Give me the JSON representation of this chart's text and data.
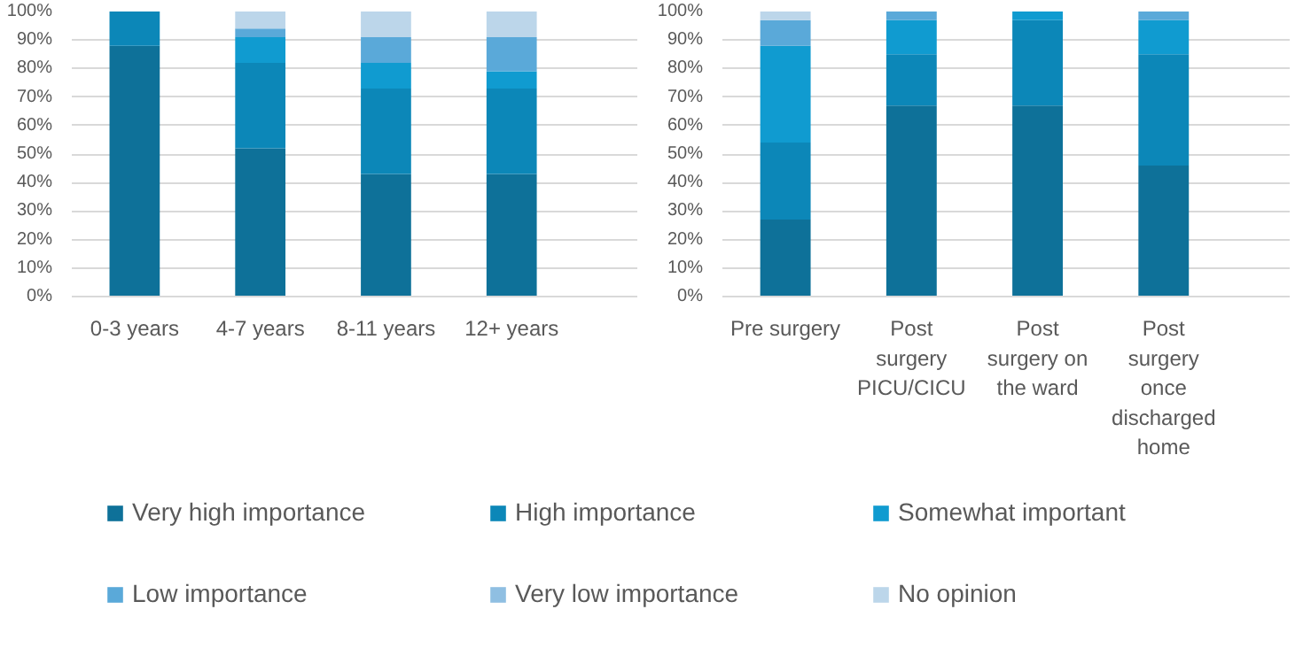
{
  "chart_data": [
    {
      "type": "bar",
      "stacked": true,
      "categories": [
        "0-3 years",
        "4-7 years",
        "8-11 years",
        "12+ years"
      ],
      "ylim": [
        0,
        100
      ],
      "yticks": [
        {
          "value": 0,
          "label": "0%"
        },
        {
          "value": 10,
          "label": "10%"
        },
        {
          "value": 20,
          "label": "20%"
        },
        {
          "value": 30,
          "label": "30%"
        },
        {
          "value": 40,
          "label": "40%"
        },
        {
          "value": 50,
          "label": "50%"
        },
        {
          "value": 60,
          "label": "60%"
        },
        {
          "value": 70,
          "label": "70%"
        },
        {
          "value": 80,
          "label": "80%"
        },
        {
          "value": 90,
          "label": "90%"
        },
        {
          "value": 100,
          "label": "100%"
        }
      ],
      "grid": "y",
      "legend": "bottom",
      "series": [
        {
          "name": "Very high importance",
          "color": "#0e7199",
          "values": [
            88,
            52,
            43,
            43
          ]
        },
        {
          "name": "High importance",
          "color": "#0c87b8",
          "values": [
            12,
            30,
            30,
            30
          ]
        },
        {
          "name": "Somewhat important",
          "color": "#109bd0",
          "values": [
            0,
            9,
            9,
            6
          ]
        },
        {
          "name": "Low importance",
          "color": "#5aa9d9",
          "values": [
            0,
            3,
            9,
            12
          ]
        },
        {
          "name": "Very low importance",
          "color": "#8fbfe2",
          "values": [
            0,
            0,
            0,
            0
          ]
        },
        {
          "name": "No opinion",
          "color": "#bcd6ea",
          "values": [
            0,
            6,
            9,
            9
          ]
        }
      ]
    },
    {
      "type": "bar",
      "stacked": true,
      "categories": [
        "Pre surgery",
        "Post surgery PICU/CICU",
        "Post surgery on the ward",
        "Post surgery once discharged home"
      ],
      "ylim": [
        0,
        100
      ],
      "yticks": [
        {
          "value": 0,
          "label": "0%"
        },
        {
          "value": 10,
          "label": "10%"
        },
        {
          "value": 20,
          "label": "20%"
        },
        {
          "value": 30,
          "label": "30%"
        },
        {
          "value": 40,
          "label": "40%"
        },
        {
          "value": 50,
          "label": "50%"
        },
        {
          "value": 60,
          "label": "60%"
        },
        {
          "value": 70,
          "label": "70%"
        },
        {
          "value": 80,
          "label": "80%"
        },
        {
          "value": 90,
          "label": "90%"
        },
        {
          "value": 100,
          "label": "100%"
        }
      ],
      "grid": "y",
      "series": [
        {
          "color": "#0e7199",
          "values": [
            27,
            67,
            67,
            46
          ]
        },
        {
          "color": "#0c87b8",
          "values": [
            27,
            18,
            30,
            39
          ]
        },
        {
          "color": "#109bd0",
          "values": [
            34,
            12,
            3,
            12
          ]
        },
        {
          "color": "#5aa9d9",
          "values": [
            9,
            3,
            0,
            3
          ]
        },
        {
          "color": "#8fbfe2",
          "values": [
            0,
            0,
            0,
            0
          ]
        },
        {
          "color": "#bcd6ea",
          "values": [
            3,
            0,
            0,
            0
          ]
        }
      ]
    }
  ]
}
